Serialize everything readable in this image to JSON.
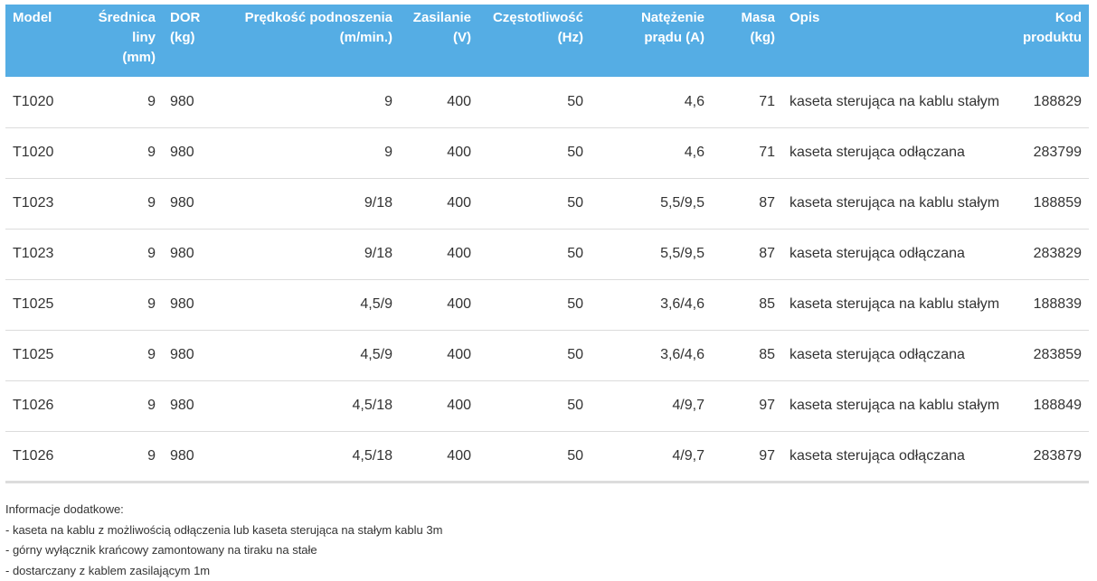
{
  "table": {
    "headers": [
      {
        "lines": [
          "Model"
        ],
        "align": "left"
      },
      {
        "lines": [
          "Średnica",
          "liny",
          "(mm)"
        ],
        "align": "right"
      },
      {
        "lines": [
          "DOR",
          "(kg)"
        ],
        "align": "left"
      },
      {
        "lines": [
          "Prędkość podnoszenia",
          "(m/min.)"
        ],
        "align": "right"
      },
      {
        "lines": [
          "Zasilanie",
          "(V)"
        ],
        "align": "right"
      },
      {
        "lines": [
          "Częstotliwość",
          "(Hz)"
        ],
        "align": "right"
      },
      {
        "lines": [
          "Natężenie",
          "prądu (A)"
        ],
        "align": "right"
      },
      {
        "lines": [
          "Masa",
          "(kg)"
        ],
        "align": "right"
      },
      {
        "lines": [
          "Opis"
        ],
        "align": "left"
      },
      {
        "lines": [
          "Kod",
          "produktu"
        ],
        "align": "right"
      }
    ],
    "rows": [
      [
        "T1020",
        "9",
        "980",
        "9",
        "400",
        "50",
        "4,6",
        "71",
        "kaseta sterująca na kablu stałym",
        "188829"
      ],
      [
        "T1020",
        "9",
        "980",
        "9",
        "400",
        "50",
        "4,6",
        "71",
        "kaseta sterująca odłączana",
        "283799"
      ],
      [
        "T1023",
        "9",
        "980",
        "9/18",
        "400",
        "50",
        "5,5/9,5",
        "87",
        "kaseta sterująca na kablu stałym",
        "188859"
      ],
      [
        "T1023",
        "9",
        "980",
        "9/18",
        "400",
        "50",
        "5,5/9,5",
        "87",
        "kaseta sterująca odłączana",
        "283829"
      ],
      [
        "T1025",
        "9",
        "980",
        "4,5/9",
        "400",
        "50",
        "3,6/4,6",
        "85",
        "kaseta sterująca na kablu stałym",
        "188839"
      ],
      [
        "T1025",
        "9",
        "980",
        "4,5/9",
        "400",
        "50",
        "3,6/4,6",
        "85",
        "kaseta sterująca odłączana",
        "283859"
      ],
      [
        "T1026",
        "9",
        "980",
        "4,5/18",
        "400",
        "50",
        "4/9,7",
        "97",
        "kaseta sterująca na kablu stałym",
        "188849"
      ],
      [
        "T1026",
        "9",
        "980",
        "4,5/18",
        "400",
        "50",
        "4/9,7",
        "97",
        "kaseta sterująca odłączana",
        "283879"
      ]
    ]
  },
  "notes": [
    "Informacje dodatkowe:",
    "- kaseta na kablu z możliwością odłączenia lub kaseta sterująca na stałym kablu 3m",
    "- górny wyłącznik krańcowy zamontowany na tiraku na stałe",
    "- dostarczany z kablem zasilającym 1m"
  ],
  "colors": {
    "header_bg": "#55ade4",
    "header_text": "#ffffff",
    "body_text": "#333333",
    "row_divider": "#dcdcdc"
  }
}
